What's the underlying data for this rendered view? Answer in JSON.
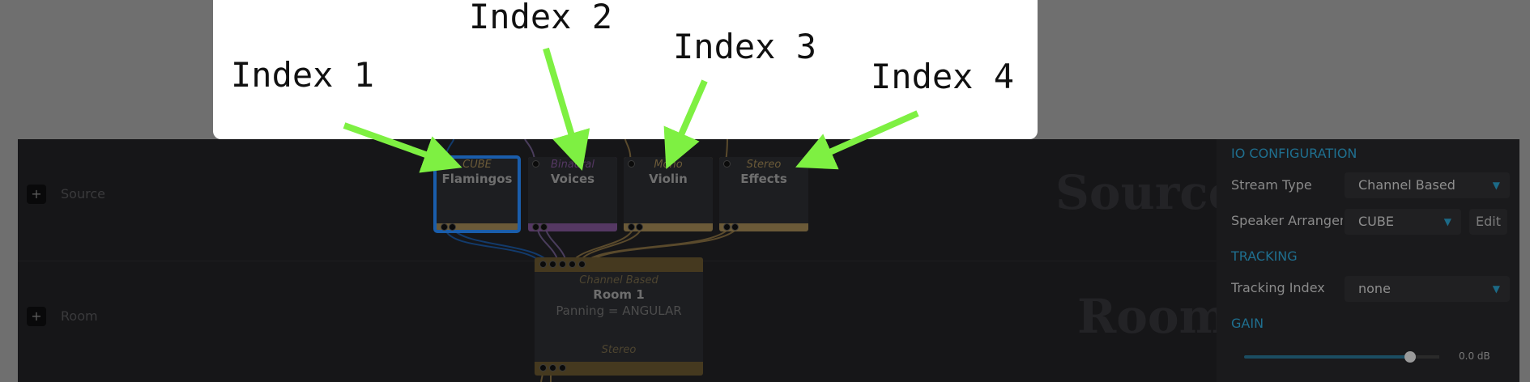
{
  "annotation": {
    "labels": [
      "Index 1",
      "Index 2",
      "Index 3",
      "Index 4"
    ],
    "arrow_color": "#7ef042"
  },
  "graph": {
    "rows": [
      {
        "label": "Source",
        "bg_word": "Source",
        "add_symbol": "+"
      },
      {
        "label": "Room",
        "bg_word": "Room",
        "add_symbol": "+"
      }
    ],
    "sources": [
      {
        "type": "CUBE",
        "name": "Flamingos",
        "selected": true,
        "color": "#6b5a38"
      },
      {
        "type": "Binaural",
        "name": "Voices",
        "selected": false,
        "color": "#553863"
      },
      {
        "type": "Mono",
        "name": "Violin",
        "selected": false,
        "color": "#6b5a38"
      },
      {
        "type": "Stereo",
        "name": "Effects",
        "selected": false,
        "color": "#6b5a38"
      }
    ],
    "room": {
      "type": "Channel Based",
      "name": "Room 1",
      "panning": "Panning = ANGULAR",
      "output_type": "Stereo"
    },
    "selection_color": "#1a5dab"
  },
  "panel": {
    "io_header": "IO CONFIGURATION",
    "stream_type_label": "Stream Type",
    "stream_type_value": "Channel Based",
    "speaker_label": "Speaker Arrangem",
    "speaker_value": "CUBE",
    "edit_label": "Edit",
    "tracking_header": "TRACKING",
    "tracking_index_label": "Tracking Index",
    "tracking_index_value": "none",
    "gain_header": "GAIN",
    "gain_value": "0.0 dB",
    "gain_fraction": 0.85,
    "accent_color": "#1f6f8f"
  }
}
